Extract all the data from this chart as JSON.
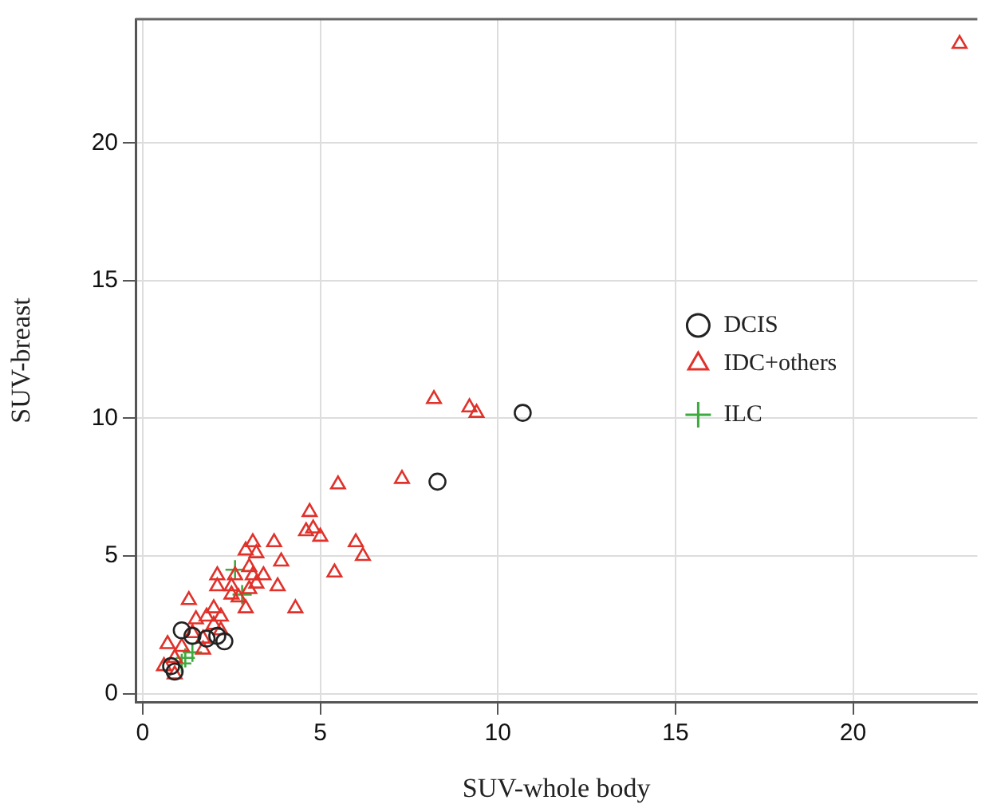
{
  "chart_data": {
    "type": "scatter",
    "xlabel": "SUV-whole body",
    "ylabel": "SUV-breast",
    "xlim": [
      -0.2,
      23.5
    ],
    "ylim": [
      -0.3,
      24.5
    ],
    "xticks": [
      0,
      5,
      10,
      15,
      20
    ],
    "yticks": [
      0,
      5,
      10,
      15,
      20
    ],
    "grid": true,
    "legend": "right",
    "series": [
      {
        "name": "DCIS",
        "color": "#222222",
        "marker": "circle",
        "x": [
          10.7,
          8.3,
          1.1,
          1.8,
          2.3,
          1.4,
          0.8,
          0.9,
          2.1
        ],
        "values": [
          10.2,
          7.7,
          2.3,
          2.0,
          1.9,
          2.1,
          1.0,
          0.8,
          2.1
        ]
      },
      {
        "name": "IDC+others",
        "color": "#e0312a",
        "marker": "triangle",
        "x": [
          23.0,
          8.2,
          9.2,
          9.4,
          7.3,
          5.5,
          4.7,
          4.6,
          4.8,
          5.0,
          6.0,
          6.2,
          5.4,
          3.1,
          2.9,
          3.7,
          3.9,
          3.2,
          2.1,
          2.6,
          3.0,
          3.1,
          3.4,
          2.1,
          2.5,
          3.0,
          3.2,
          3.8,
          2.5,
          2.7,
          2.9,
          4.3,
          1.3,
          2.0,
          1.5,
          1.8,
          2.2,
          2.0,
          2.2,
          1.4,
          1.7,
          0.7,
          1.1,
          1.7,
          0.9,
          0.6,
          0.9
        ],
        "values": [
          23.6,
          10.7,
          10.4,
          10.2,
          7.8,
          7.6,
          6.6,
          5.9,
          6.0,
          5.7,
          5.5,
          5.0,
          4.4,
          5.5,
          5.2,
          5.5,
          4.8,
          5.1,
          4.3,
          4.3,
          4.6,
          4.3,
          4.3,
          3.9,
          3.9,
          3.8,
          4.0,
          3.9,
          3.6,
          3.5,
          3.1,
          3.1,
          3.4,
          3.1,
          2.7,
          2.8,
          2.8,
          2.5,
          2.3,
          2.2,
          2.0,
          1.8,
          1.7,
          1.6,
          1.3,
          1.0,
          0.7
        ]
      },
      {
        "name": "ILC",
        "color": "#3daa3d",
        "marker": "cross",
        "x": [
          2.6,
          2.8,
          1.4,
          1.2,
          1.1
        ],
        "values": [
          4.5,
          3.6,
          1.5,
          1.3,
          1.1
        ]
      }
    ]
  }
}
